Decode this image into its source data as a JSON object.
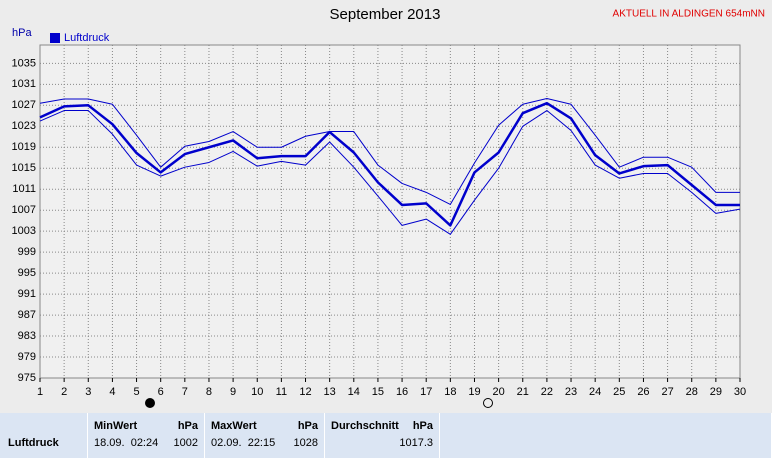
{
  "chart_data": {
    "type": "line",
    "title": "September 2013",
    "subtitle": "AKTUELL IN ALDINGEN 654mNN",
    "y_label": "hPa",
    "x": [
      1,
      2,
      3,
      4,
      5,
      6,
      7,
      8,
      9,
      10,
      11,
      12,
      13,
      14,
      15,
      16,
      17,
      18,
      19,
      20,
      21,
      22,
      23,
      24,
      25,
      26,
      27,
      28,
      29,
      30
    ],
    "xlim": [
      1,
      30
    ],
    "xticks": [
      1,
      2,
      3,
      4,
      5,
      6,
      7,
      8,
      9,
      10,
      11,
      12,
      13,
      14,
      15,
      16,
      17,
      18,
      19,
      20,
      21,
      22,
      23,
      24,
      25,
      26,
      27,
      28,
      29,
      30
    ],
    "ylim": [
      975,
      1038.5
    ],
    "yticks": [
      975,
      979,
      983,
      987,
      991,
      995,
      999,
      1003,
      1007,
      1011,
      1015,
      1019,
      1023,
      1027,
      1031,
      1035
    ],
    "grid": true,
    "legend": "top-left",
    "series": [
      {
        "name": "Luftdruck",
        "color": "#0000cc",
        "width": 2.5,
        "values": [
          1024.7,
          1026.8,
          1027.0,
          1023.4,
          1017.9,
          1014.2,
          1017.7,
          1019.0,
          1020.3,
          1016.9,
          1017.3,
          1017.3,
          1021.9,
          1018.0,
          1012.3,
          1008.0,
          1008.3,
          1004.1,
          1014.2,
          1018.0,
          1025.5,
          1027.4,
          1024.5,
          1017.5,
          1014.0,
          1015.4,
          1015.6,
          1011.8,
          1008.0,
          1008.0
        ]
      },
      {
        "color": "#0000cc",
        "width": 1,
        "values": [
          1027.4,
          1028.2,
          1028.2,
          1027.2,
          1021.3,
          1015.2,
          1019.2,
          1020.1,
          1022.0,
          1019.0,
          1019.0,
          1021.1,
          1022.0,
          1022.0,
          1015.6,
          1012.1,
          1010.4,
          1008.1,
          1016.0,
          1023.2,
          1027.2,
          1028.3,
          1027.2,
          1021.3,
          1015.2,
          1017.1,
          1017.1,
          1015.2,
          1010.4,
          1010.4
        ]
      },
      {
        "color": "#0000cc",
        "width": 1,
        "values": [
          1024.0,
          1026.0,
          1026.0,
          1021.5,
          1015.6,
          1013.5,
          1015.2,
          1016.1,
          1018.2,
          1015.4,
          1016.3,
          1015.6,
          1020.0,
          1015.2,
          1009.7,
          1004.1,
          1005.3,
          1002.4,
          1008.9,
          1015.0,
          1023.0,
          1026.0,
          1022.2,
          1015.6,
          1013.1,
          1014.0,
          1014.0,
          1010.4,
          1006.4,
          1007.2
        ]
      }
    ]
  },
  "table": {
    "headers": [
      [
        "MinWert",
        "hPa"
      ],
      [
        "MaxWert",
        "hPa"
      ],
      [
        "Durchschnitt",
        "hPa"
      ]
    ],
    "rows": [
      [
        "Luftdruck",
        "18.09.  02:24",
        "1002",
        "02.09.  22:15",
        "1028",
        "1017.3"
      ]
    ]
  }
}
